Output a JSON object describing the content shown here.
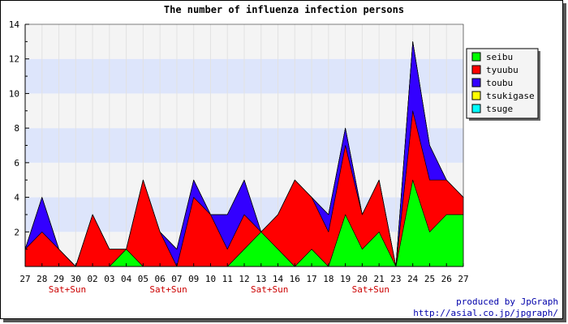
{
  "chart_data": {
    "type": "area",
    "stacked": true,
    "title": "The number of influenza infection persons",
    "xlabel": "",
    "ylabel": "",
    "ylim": [
      0,
      14
    ],
    "yticks": [
      2,
      4,
      6,
      8,
      10,
      12,
      14
    ],
    "grid": true,
    "legend_position": "right",
    "categories": [
      "27",
      "28",
      "29",
      "30",
      "02",
      "03",
      "04",
      "05",
      "06",
      "07",
      "09",
      "10",
      "11",
      "12",
      "13",
      "14",
      "16",
      "17",
      "18",
      "19",
      "20",
      "21",
      "23",
      "24",
      "25",
      "26",
      "27"
    ],
    "weekend_labels": [
      {
        "after_index": 2,
        "text": "Sat+Sun"
      },
      {
        "after_index": 8,
        "text": "Sat+Sun"
      },
      {
        "after_index": 14,
        "text": "Sat+Sun"
      },
      {
        "after_index": 20,
        "text": "Sat+Sun"
      }
    ],
    "series": [
      {
        "name": "seibu",
        "color": "#00ff00",
        "values": [
          0,
          0,
          0,
          0,
          0,
          0,
          1,
          0,
          0,
          0,
          0,
          0,
          0,
          1,
          2,
          1,
          0,
          1,
          0,
          3,
          1,
          2,
          0,
          5,
          2,
          3,
          3
        ]
      },
      {
        "name": "tyuubu",
        "color": "#ff0000",
        "values": [
          1,
          2,
          1,
          0,
          3,
          1,
          0,
          5,
          2,
          0,
          4,
          3,
          1,
          2,
          0,
          2,
          5,
          3,
          2,
          4,
          2,
          3,
          0,
          4,
          3,
          2,
          1
        ]
      },
      {
        "name": "toubu",
        "color": "#3300ff",
        "values": [
          0,
          2,
          0,
          0,
          0,
          0,
          0,
          0,
          0,
          1,
          1,
          0,
          2,
          2,
          0,
          0,
          0,
          0,
          1,
          1,
          0,
          0,
          0,
          4,
          2,
          0,
          0
        ]
      },
      {
        "name": "tsukigase",
        "color": "#ffff00",
        "values": [
          0,
          0,
          0,
          0,
          0,
          0,
          0,
          0,
          0,
          0,
          0,
          0,
          0,
          0,
          0,
          0,
          0,
          0,
          0,
          0,
          0,
          0,
          0,
          0,
          0,
          0,
          0
        ]
      },
      {
        "name": "tsuge",
        "color": "#00ffff",
        "values": [
          0,
          0,
          0,
          0,
          0,
          0,
          0,
          0,
          0,
          0,
          0,
          0,
          0,
          0,
          0,
          0,
          0,
          0,
          0,
          0,
          0,
          0,
          0,
          0,
          0,
          0,
          0
        ]
      }
    ],
    "credit_line1": "produced by JpGraph",
    "credit_line2": "http://asial.co.jp/jpgraph/"
  }
}
